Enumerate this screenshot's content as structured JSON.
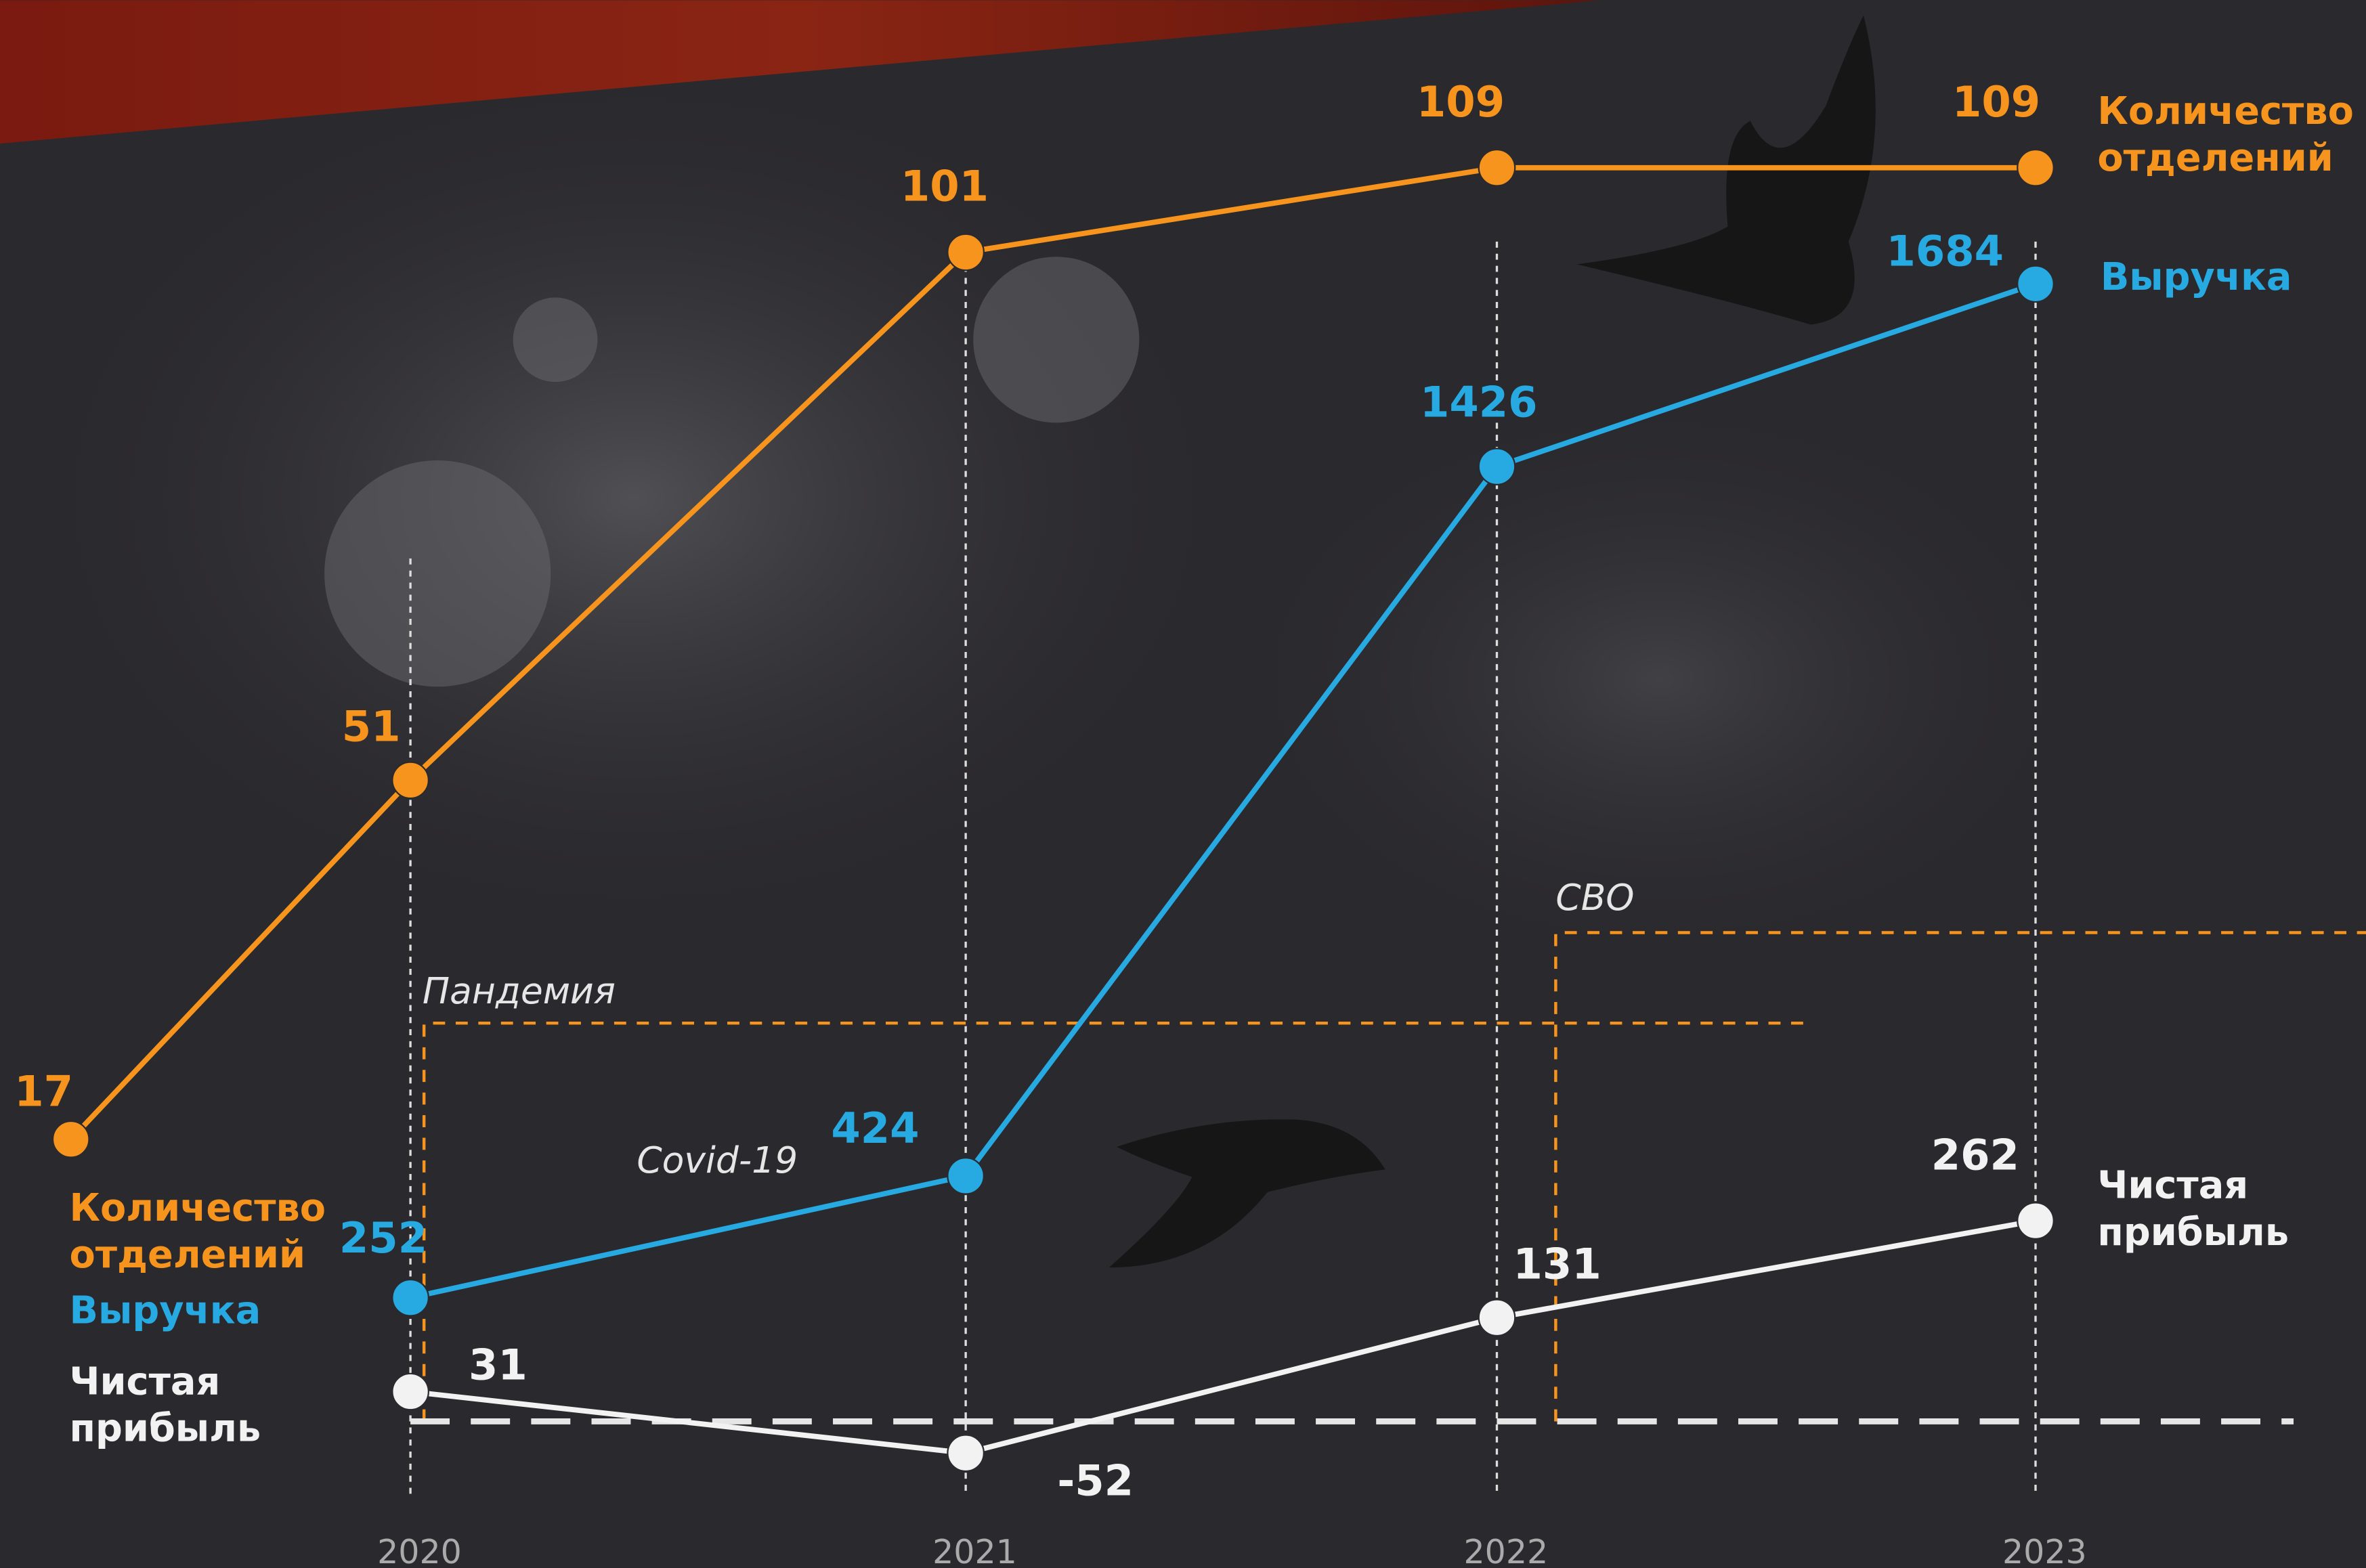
{
  "chart_data": {
    "type": "line",
    "categories": [
      null,
      "2020",
      "2021",
      "2022",
      "2023"
    ],
    "series": [
      {
        "name": "Количество отделений",
        "color": "#f7941d",
        "values": [
          17,
          51,
          101,
          109,
          109
        ]
      },
      {
        "name": "Выручка",
        "color": "#27a9e1",
        "values": [
          null,
          252,
          424,
          1426,
          1684
        ]
      },
      {
        "name": "Чистая прибыль",
        "color": "#f2f2f2",
        "values": [
          null,
          31,
          -52,
          131,
          262
        ]
      }
    ],
    "annotations": [
      "Пандемия",
      "Covid-19",
      "СВО"
    ]
  }
}
